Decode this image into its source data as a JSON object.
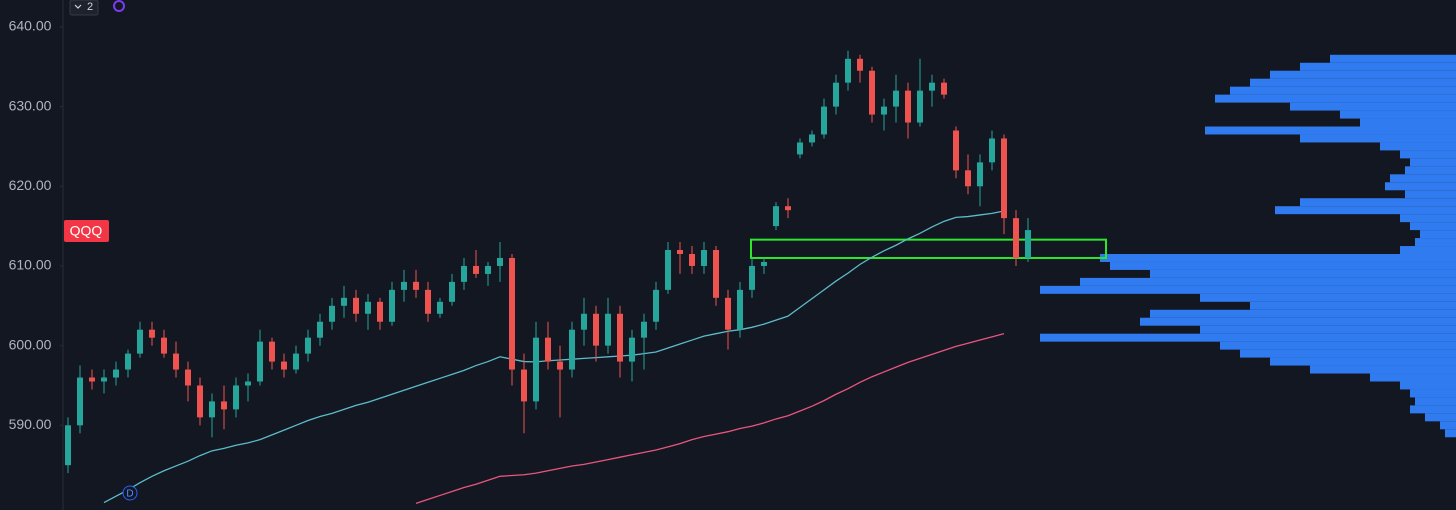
{
  "chart_data": {
    "type": "candlestick",
    "symbol": "QQQ",
    "interval_badge": "2",
    "marker": "D",
    "up_color": "#26a69a",
    "down_color": "#ef5350",
    "ylim": [
      580,
      643
    ],
    "yticks": [
      {
        "value": 590,
        "label": "590.00"
      },
      {
        "value": 600,
        "label": "600.00"
      },
      {
        "value": 610,
        "label": "610.00"
      },
      {
        "value": 620,
        "label": "620.00"
      },
      {
        "value": 630,
        "label": "630.00"
      },
      {
        "value": 640,
        "label": "640.00"
      }
    ],
    "open": [
      585,
      590,
      596,
      595.5,
      596,
      597,
      599,
      602,
      601,
      599,
      597,
      595,
      591,
      593,
      592,
      595,
      595.5,
      600.5,
      598,
      597,
      599,
      601,
      603,
      605,
      606,
      604,
      605.5,
      603,
      607,
      608,
      607,
      604,
      605.5,
      608,
      610,
      609,
      610,
      611,
      597,
      593,
      601,
      598,
      597,
      602,
      604,
      600,
      604,
      598,
      601,
      603,
      607,
      612,
      611.5,
      610,
      612,
      606,
      602,
      607,
      610,
      615,
      617.5,
      624,
      625.5,
      626.5,
      630,
      633,
      636,
      634.5,
      629,
      630,
      632,
      628,
      632,
      633,
      627,
      622,
      620,
      623,
      626,
      616,
      611
    ],
    "high": [
      591,
      597.5,
      597,
      597,
      598,
      599.5,
      603,
      603,
      602,
      600.5,
      598,
      596,
      594,
      595,
      596,
      596.5,
      602,
      601,
      599,
      600,
      602,
      604,
      606,
      607.5,
      607,
      606.5,
      606,
      608,
      609.5,
      609.5,
      608,
      606,
      609,
      611,
      612,
      610.5,
      613,
      611.5,
      599,
      603,
      603,
      600,
      603,
      606,
      605,
      606,
      605,
      602,
      604,
      608,
      613,
      613,
      612.5,
      613,
      612.5,
      607,
      608,
      611,
      611,
      618,
      618.5,
      626,
      627,
      631,
      634,
      637,
      636.5,
      635,
      631,
      634,
      633,
      636,
      634,
      633.5,
      627.5,
      624,
      624,
      627,
      626.5,
      617,
      616
    ],
    "low": [
      584,
      589,
      594.5,
      594,
      595,
      596,
      598.5,
      600,
      598.5,
      596,
      593,
      590,
      588.5,
      589.5,
      591,
      593,
      595,
      597,
      596,
      596.5,
      598,
      600,
      602,
      603.5,
      603,
      602,
      602,
      602.5,
      605.5,
      606,
      603,
      603.5,
      605,
      607,
      608.5,
      607.5,
      608,
      595,
      589,
      592,
      597,
      591,
      596,
      600,
      598,
      599,
      596,
      595.5,
      597,
      602,
      606.5,
      609,
      609,
      609,
      605,
      599.5,
      601,
      606,
      609,
      614.5,
      616,
      623.5,
      625,
      626,
      629,
      632,
      633,
      628,
      627,
      628,
      626,
      627.5,
      630,
      631,
      621,
      619,
      617.5,
      622,
      614,
      610,
      610.5
    ],
    "close": [
      590,
      596,
      595.5,
      596,
      597,
      599,
      602,
      601,
      599,
      597,
      595,
      591,
      593,
      592,
      595,
      595.5,
      600.5,
      598,
      597,
      599,
      601,
      603,
      605,
      606,
      604,
      605.5,
      603,
      607,
      608,
      607,
      604,
      605.5,
      608,
      610,
      609,
      610,
      611,
      597,
      593,
      601,
      598,
      597,
      602,
      604,
      600,
      604,
      598,
      601,
      603,
      607,
      612,
      611.5,
      610,
      612,
      606,
      602,
      607,
      610,
      610.5,
      617.5,
      617,
      625.5,
      626.5,
      630,
      633,
      636,
      634.5,
      629,
      630,
      632,
      628,
      632,
      633,
      631.5,
      622,
      620,
      623,
      626,
      616,
      611,
      614.5
    ],
    "overlays": [
      {
        "color": "#5cbcc9",
        "values": [
          null,
          null,
          null,
          580.3,
          581.1,
          581.9,
          582.8,
          583.6,
          584.3,
          584.9,
          585.5,
          586.2,
          586.8,
          587.1,
          587.5,
          587.8,
          588.2,
          588.8,
          589.4,
          590,
          590.6,
          591.1,
          591.5,
          592,
          592.5,
          592.9,
          593.4,
          593.9,
          594.4,
          594.9,
          595.4,
          595.9,
          596.4,
          596.9,
          597.5,
          598,
          598.6,
          598.3,
          598,
          597.96,
          598.1,
          598.2,
          598.3,
          598.4,
          598.5,
          598.6,
          598.7,
          598.8,
          599,
          599.2,
          599.7,
          600.2,
          600.7,
          601.2,
          601.5,
          601.8,
          602,
          602.3,
          602.7,
          603.2,
          603.7,
          604.8,
          605.9,
          607,
          608.1,
          609.1,
          610.2,
          611.1,
          611.9,
          612.6,
          613.4,
          614.1,
          614.9,
          615.6,
          616.1,
          616.2,
          616.4,
          616.6,
          616.9,
          null,
          null
        ]
      },
      {
        "color": "#e9557e",
        "values": [
          null,
          null,
          null,
          null,
          null,
          null,
          null,
          null,
          null,
          null,
          null,
          null,
          null,
          null,
          null,
          null,
          null,
          null,
          null,
          null,
          null,
          null,
          null,
          null,
          null,
          null,
          null,
          null,
          null,
          580.2,
          580.7,
          581.2,
          581.7,
          582.2,
          582.6,
          583.1,
          583.6,
          583.7,
          583.8,
          584,
          584.3,
          584.6,
          584.9,
          585.1,
          585.4,
          585.7,
          586,
          586.3,
          586.6,
          586.9,
          587.3,
          587.7,
          588.2,
          588.6,
          588.9,
          589.2,
          589.6,
          589.9,
          590.3,
          590.8,
          591.2,
          591.8,
          592.4,
          593.1,
          593.9,
          594.6,
          595.4,
          596.1,
          596.7,
          597.3,
          597.9,
          598.4,
          598.9,
          599.4,
          599.9,
          600.3,
          600.7,
          601.1,
          601.5,
          null,
          null
        ]
      }
    ],
    "profile": {
      "color": "#2f7bef",
      "prices": [
        636,
        635,
        634,
        633,
        632,
        631,
        630,
        629,
        628,
        627,
        626,
        625,
        624,
        623,
        622,
        621,
        620,
        619,
        618,
        617,
        616,
        615,
        614,
        613,
        612,
        611,
        610,
        609,
        608,
        607,
        606,
        605,
        604,
        603,
        602,
        601,
        600,
        599,
        598,
        597,
        596,
        595,
        594,
        593,
        592,
        591,
        590,
        589
      ],
      "volumes": [
        126,
        156,
        186,
        206,
        226,
        241,
        166,
        116,
        96,
        251,
        156,
        76,
        56,
        46,
        51,
        66,
        71,
        51,
        156,
        181,
        56,
        46,
        36,
        41,
        56,
        356,
        346,
        306,
        376,
        416,
        256,
        206,
        306,
        316,
        256,
        416,
        236,
        216,
        186,
        146,
        86,
        56,
        46,
        41,
        46,
        31,
        16,
        11
      ]
    },
    "zone": {
      "color": "#2ee62e",
      "low": 611,
      "high": 613.3
    }
  }
}
